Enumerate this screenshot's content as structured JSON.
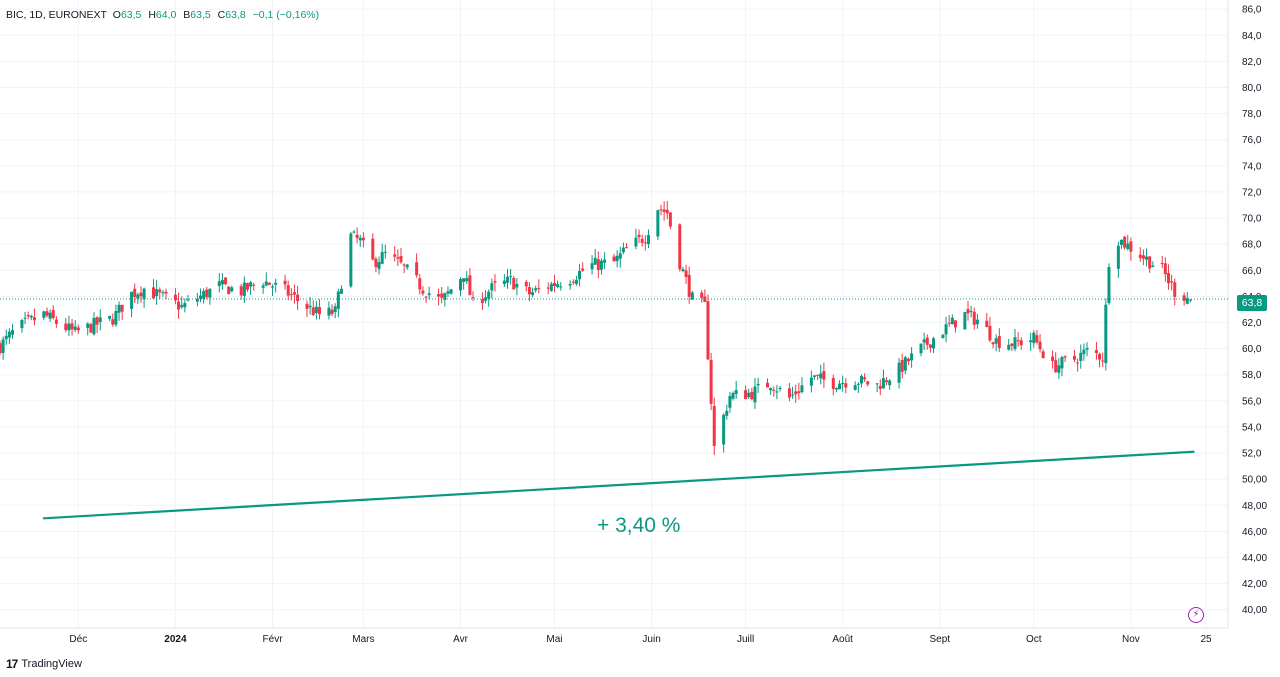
{
  "legend": {
    "symbol": "BIC, 1D, EURONEXT",
    "o_label": "O",
    "o_value": "63,5",
    "h_label": "H",
    "h_value": "64,0",
    "b_label": "B",
    "b_value": "63,5",
    "c_label": "C",
    "c_value": "63,8",
    "change": "−0,1 (−0,16%)"
  },
  "last_price": "63,8",
  "annotation": "+ 3,40 %",
  "brand": "TradingView",
  "colors": {
    "up": "#089981",
    "down": "#f23645",
    "trend": "#089981",
    "grid": "#f0f3fa",
    "bolt": "#9c27b0"
  },
  "chart_data": {
    "type": "candlestick",
    "symbol": "BIC",
    "interval": "1D",
    "exchange": "EURONEXT",
    "y_range": [
      38.6,
      86.7
    ],
    "y_ticks": [
      "86,0",
      "84,0",
      "82,0",
      "80,0",
      "78,0",
      "76,0",
      "74,0",
      "72,0",
      "70,0",
      "68,0",
      "66,0",
      "64,0",
      "62,0",
      "60,0",
      "58,0",
      "56,0",
      "54,0",
      "52,0",
      "50,00",
      "48,00",
      "46,00",
      "44,00",
      "42,00",
      "40,00"
    ],
    "x_ticks": [
      {
        "label": "Déc",
        "date": "2023-12-01"
      },
      {
        "label": "2024",
        "date": "2024-01-01",
        "bold": true
      },
      {
        "label": "Févr",
        "date": "2024-02-01"
      },
      {
        "label": "Mars",
        "date": "2024-03-01"
      },
      {
        "label": "Avr",
        "date": "2024-04-01"
      },
      {
        "label": "Mai",
        "date": "2024-05-01"
      },
      {
        "label": "Juin",
        "date": "2024-06-01"
      },
      {
        "label": "Juill",
        "date": "2024-07-01"
      },
      {
        "label": "Août",
        "date": "2024-08-01"
      },
      {
        "label": "Sept",
        "date": "2024-09-01"
      },
      {
        "label": "Oct",
        "date": "2024-10-01"
      },
      {
        "label": "Nov",
        "date": "2024-11-01"
      },
      {
        "label": "25",
        "date": "2024-11-25"
      }
    ],
    "x_range": [
      "2023-11-06",
      "2024-12-02"
    ],
    "close_path": [
      [
        "2023-11-06",
        60.2
      ],
      [
        "2023-11-10",
        61.2
      ],
      [
        "2023-11-14",
        61.9
      ],
      [
        "2023-11-20",
        62.6
      ],
      [
        "2023-11-24",
        62.0
      ],
      [
        "2023-11-30",
        61.2
      ],
      [
        "2023-12-06",
        61.8
      ],
      [
        "2023-12-12",
        62.3
      ],
      [
        "2023-12-18",
        64.2
      ],
      [
        "2023-12-22",
        64.6
      ],
      [
        "2024-01-03",
        63.2
      ],
      [
        "2024-01-09",
        64.0
      ],
      [
        "2024-01-15",
        64.8
      ],
      [
        "2024-01-22",
        64.4
      ],
      [
        "2024-01-29",
        65.2
      ],
      [
        "2024-02-05",
        64.4
      ],
      [
        "2024-02-12",
        63.2
      ],
      [
        "2024-02-16",
        62.6
      ],
      [
        "2024-02-21",
        62.8
      ],
      [
        "2024-02-26",
        68.6
      ],
      [
        "2024-02-29",
        68.2
      ],
      [
        "2024-03-04",
        66.6
      ],
      [
        "2024-03-08",
        67.2
      ],
      [
        "2024-03-14",
        66.2
      ],
      [
        "2024-03-20",
        64.6
      ],
      [
        "2024-03-26",
        63.6
      ],
      [
        "2024-04-02",
        65.8
      ],
      [
        "2024-04-05",
        63.4
      ],
      [
        "2024-04-11",
        64.6
      ],
      [
        "2024-04-17",
        65.2
      ],
      [
        "2024-04-23",
        64.2
      ],
      [
        "2024-04-29",
        64.8
      ],
      [
        "2024-05-06",
        65.4
      ],
      [
        "2024-05-13",
        66.4
      ],
      [
        "2024-05-20",
        66.6
      ],
      [
        "2024-05-24",
        67.6
      ],
      [
        "2024-05-30",
        68.6
      ],
      [
        "2024-06-03",
        70.8
      ],
      [
        "2024-06-06",
        70.4
      ],
      [
        "2024-06-10",
        66.6
      ],
      [
        "2024-06-14",
        63.8
      ],
      [
        "2024-06-18",
        63.2
      ],
      [
        "2024-06-21",
        52.4
      ],
      [
        "2024-06-26",
        56.4
      ],
      [
        "2024-07-03",
        56.6
      ],
      [
        "2024-07-09",
        57.4
      ],
      [
        "2024-07-15",
        56.2
      ],
      [
        "2024-07-22",
        57.8
      ],
      [
        "2024-07-29",
        57.4
      ],
      [
        "2024-08-05",
        57.6
      ],
      [
        "2024-08-12",
        57.2
      ],
      [
        "2024-08-19",
        58.4
      ],
      [
        "2024-08-26",
        60.0
      ],
      [
        "2024-09-02",
        61.4
      ],
      [
        "2024-09-09",
        62.6
      ],
      [
        "2024-09-13",
        62.2
      ],
      [
        "2024-09-19",
        60.6
      ],
      [
        "2024-09-25",
        60.4
      ],
      [
        "2024-10-01",
        60.8
      ],
      [
        "2024-10-07",
        58.6
      ],
      [
        "2024-10-14",
        59.2
      ],
      [
        "2024-10-18",
        59.8
      ],
      [
        "2024-10-23",
        59.4
      ],
      [
        "2024-10-25",
        66.8
      ],
      [
        "2024-10-28",
        68.4
      ],
      [
        "2024-11-04",
        67.2
      ],
      [
        "2024-11-11",
        66.0
      ],
      [
        "2024-11-15",
        64.4
      ],
      [
        "2024-11-20",
        63.8
      ]
    ],
    "gap_ranges": [
      [
        "2024-10-24",
        "2024-10-24"
      ]
    ],
    "trend_line": {
      "from": [
        "2023-11-20",
        47.0
      ],
      "to": [
        "2024-11-21",
        52.1
      ]
    },
    "last_close": 63.8,
    "annotation": "+ 3,40 %"
  }
}
